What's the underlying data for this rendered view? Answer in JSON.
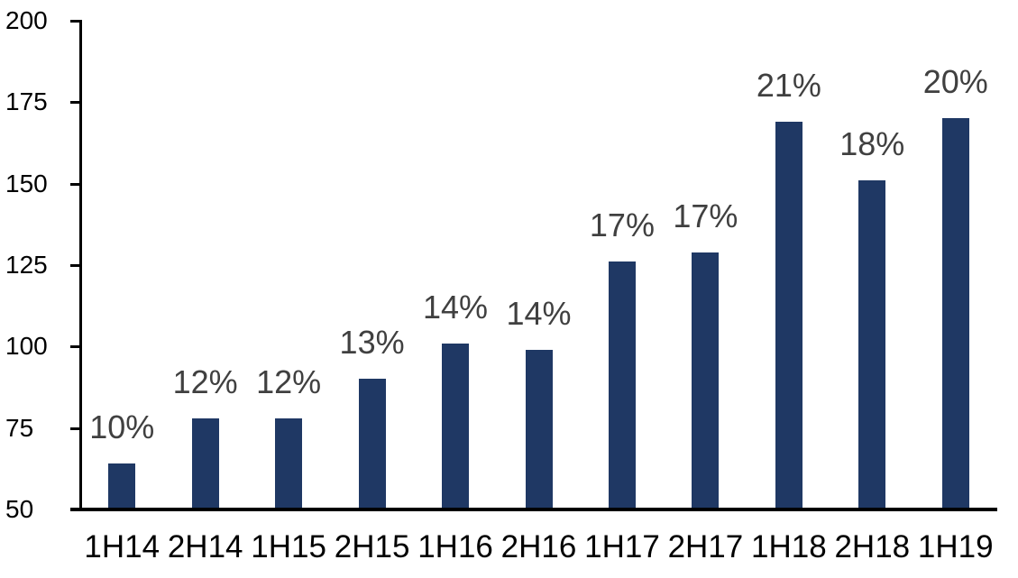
{
  "chart_data": {
    "type": "bar",
    "title": "",
    "xlabel": "",
    "ylabel": "",
    "categories": [
      "1H14",
      "2H14",
      "1H15",
      "2H15",
      "1H16",
      "2H16",
      "1H17",
      "2H17",
      "1H18",
      "2H18",
      "1H19"
    ],
    "values": [
      64,
      78,
      78,
      90,
      101,
      99,
      126,
      129,
      169,
      151,
      170
    ],
    "bar_labels": [
      "10%",
      "12%",
      "12%",
      "13%",
      "14%",
      "14%",
      "17%",
      "17%",
      "21%",
      "18%",
      "20%"
    ],
    "ylim": [
      50,
      200
    ],
    "yticks": [
      50,
      75,
      100,
      125,
      150,
      175,
      200
    ],
    "grid": false,
    "legend": false,
    "colors": {
      "bar": "#1F3864",
      "bar_label_text": "#404040",
      "axis": "#000000",
      "background": "#FFFFFF"
    }
  }
}
